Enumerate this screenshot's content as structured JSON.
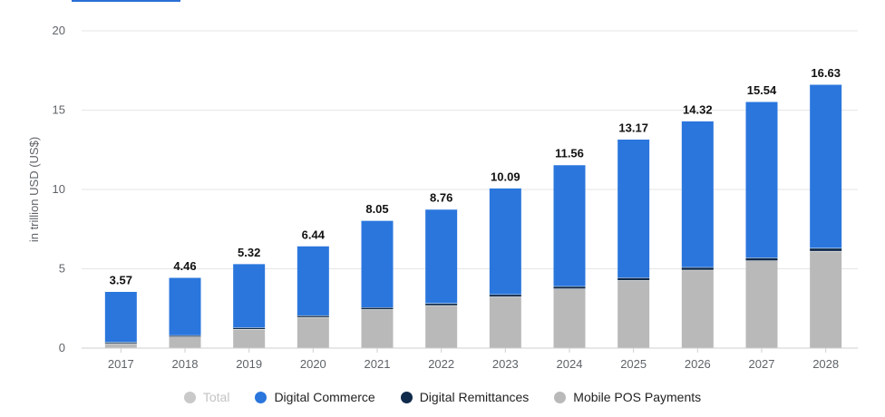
{
  "chart_data": {
    "type": "bar",
    "stacked": true,
    "ylabel": "in trillion USD (US$)",
    "ylim": [
      0,
      20
    ],
    "yticks": [
      0,
      5,
      10,
      15,
      20
    ],
    "categories": [
      "2017",
      "2018",
      "2019",
      "2020",
      "2021",
      "2022",
      "2023",
      "2024",
      "2025",
      "2026",
      "2027",
      "2028"
    ],
    "totals": [
      3.57,
      4.46,
      5.32,
      6.44,
      8.05,
      8.76,
      10.09,
      11.56,
      13.17,
      14.32,
      15.54,
      16.63
    ],
    "series": [
      {
        "name": "Mobile POS Payments",
        "color": "#b9b9b9",
        "values": [
          0.3,
          0.72,
          1.2,
          1.95,
          2.45,
          2.7,
          3.25,
          3.75,
          4.28,
          4.93,
          5.52,
          6.12
        ]
      },
      {
        "name": "Digital Remittances",
        "color": "#0f2a4a",
        "values": [
          0.08,
          0.09,
          0.1,
          0.11,
          0.12,
          0.13,
          0.14,
          0.15,
          0.16,
          0.17,
          0.18,
          0.19
        ]
      },
      {
        "name": "Digital Commerce",
        "color": "#2a76dd",
        "values": [
          3.19,
          3.65,
          4.02,
          4.38,
          5.48,
          5.93,
          6.7,
          7.66,
          8.73,
          9.22,
          9.84,
          10.32
        ]
      }
    ],
    "grid": true,
    "legend_position": "bottom"
  },
  "legend": {
    "items": [
      {
        "label": "Total",
        "color": "#c9c9c9",
        "active": false
      },
      {
        "label": "Digital Commerce",
        "color": "#2a76dd",
        "active": true
      },
      {
        "label": "Digital Remittances",
        "color": "#0f2a4a",
        "active": true
      },
      {
        "label": "Mobile POS Payments",
        "color": "#b9b9b9",
        "active": true
      }
    ]
  }
}
